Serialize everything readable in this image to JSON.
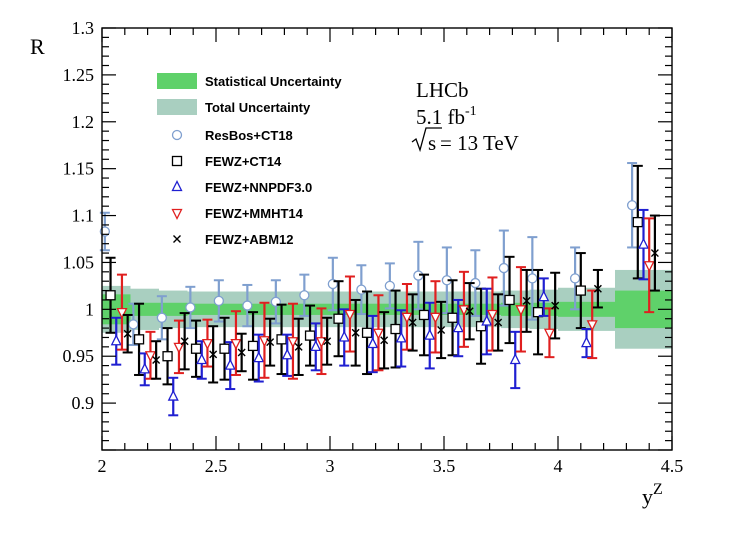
{
  "chart_data": {
    "type": "scatter",
    "xlabel": "y",
    "xlabel_sup": "Z",
    "ylabel": "R",
    "xlim": [
      2.0,
      4.5
    ],
    "ylim": [
      0.85,
      1.3
    ],
    "x_ticks": [
      "2",
      "2.5",
      "3",
      "3.5",
      "4",
      "4.5"
    ],
    "y_ticks": [
      "0.9",
      "0.95",
      "1",
      "1.05",
      "1.1",
      "1.15",
      "1.2",
      "1.25",
      "1.3"
    ],
    "annotations": {
      "experiment": "LHCb",
      "lumi": "5.1 fb",
      "lumi_sup": "-1",
      "energy_root": "s",
      "energy_rest": " = 13 TeV"
    },
    "bins": [
      2.0,
      2.125,
      2.25,
      2.375,
      2.5,
      2.625,
      2.75,
      2.875,
      3.0,
      3.125,
      3.25,
      3.375,
      3.5,
      3.625,
      3.75,
      3.875,
      4.0,
      4.25,
      4.5
    ],
    "stat_band": [
      0.016,
      0.007,
      0.007,
      0.006,
      0.006,
      0.006,
      0.006,
      0.006,
      0.006,
      0.006,
      0.006,
      0.006,
      0.006,
      0.006,
      0.007,
      0.007,
      0.008,
      0.02
    ],
    "total_band": [
      0.025,
      0.022,
      0.02,
      0.019,
      0.019,
      0.019,
      0.019,
      0.019,
      0.019,
      0.019,
      0.019,
      0.019,
      0.019,
      0.019,
      0.02,
      0.021,
      0.023,
      0.042
    ],
    "series": [
      {
        "name": "ResBos+CT18",
        "marker": "circle",
        "color": "#7f9fcf",
        "offset": -0.05,
        "values": [
          1.083,
          0.984,
          0.991,
          1.002,
          1.009,
          1.004,
          1.008,
          1.015,
          1.027,
          1.021,
          1.025,
          1.036,
          1.031,
          1.028,
          1.044,
          1.033,
          1.033,
          1.111
        ],
        "errors": [
          0.02,
          0.022,
          0.023,
          0.022,
          0.022,
          0.022,
          0.023,
          0.022,
          0.028,
          0.026,
          0.024,
          0.036,
          0.035,
          0.035,
          0.04,
          0.044,
          0.033,
          0.045
        ]
      },
      {
        "name": "FEWZ+CT14",
        "marker": "square",
        "color": "#000000",
        "offset": -0.025,
        "values": [
          1.015,
          0.968,
          0.95,
          0.958,
          0.958,
          0.961,
          0.968,
          0.972,
          0.99,
          0.975,
          0.979,
          0.994,
          0.991,
          0.982,
          1.01,
          0.997,
          1.02,
          1.093
        ],
        "errors": [
          0.04,
          0.038,
          0.03,
          0.03,
          0.033,
          0.036,
          0.037,
          0.032,
          0.04,
          0.044,
          0.041,
          0.043,
          0.04,
          0.04,
          0.046,
          0.045,
          0.04,
          0.06
        ]
      },
      {
        "name": "FEWZ+NNPDF3.0",
        "marker": "triangle-up",
        "color": "#1f1fd1",
        "offset": 0.0,
        "values": [
          0.966,
          0.936,
          0.907,
          0.946,
          0.94,
          0.948,
          0.951,
          0.96,
          0.97,
          0.963,
          0.969,
          0.972,
          0.98,
          0.987,
          0.946,
          1.013,
          0.964,
          1.069
        ],
        "errors": [
          0.025,
          0.017,
          0.02,
          0.02,
          0.025,
          0.025,
          0.022,
          0.025,
          0.03,
          0.03,
          0.03,
          0.035,
          0.03,
          0.035,
          0.03,
          0.02,
          0.015,
          0.037
        ]
      },
      {
        "name": "FEWZ+MMHT14",
        "marker": "triangle-down",
        "color": "#e01f1f",
        "offset": 0.025,
        "values": [
          0.997,
          0.951,
          0.96,
          0.964,
          0.964,
          0.967,
          0.966,
          0.966,
          0.995,
          0.975,
          0.992,
          0.992,
          1.0,
          0.995,
          1.0,
          0.975,
          0.984,
          1.047
        ],
        "errors": [
          0.04,
          0.025,
          0.028,
          0.025,
          0.034,
          0.04,
          0.04,
          0.035,
          0.04,
          0.04,
          0.035,
          0.038,
          0.04,
          0.039,
          0.045,
          0.026,
          0.036,
          0.05
        ]
      },
      {
        "name": "FEWZ+ABM12",
        "marker": "cross",
        "color": "#000000",
        "offset": 0.05,
        "values": [
          0.974,
          0.946,
          0.966,
          0.952,
          0.954,
          0.965,
          0.96,
          0.966,
          0.975,
          0.967,
          0.986,
          0.978,
          0.998,
          0.986,
          1.009,
          1.004,
          1.022,
          1.06
        ],
        "errors": [
          0.02,
          0.02,
          0.03,
          0.03,
          0.02,
          0.025,
          0.03,
          0.025,
          0.035,
          0.03,
          0.03,
          0.03,
          0.03,
          0.03,
          0.033,
          0.035,
          0.02,
          0.04
        ]
      }
    ],
    "legend": {
      "position": "top-left",
      "band_items": [
        {
          "label": "Statistical Uncertainty",
          "color": "#5fd16a"
        },
        {
          "label": "Total Uncertainty",
          "color": "#a9cfc0"
        }
      ]
    }
  }
}
